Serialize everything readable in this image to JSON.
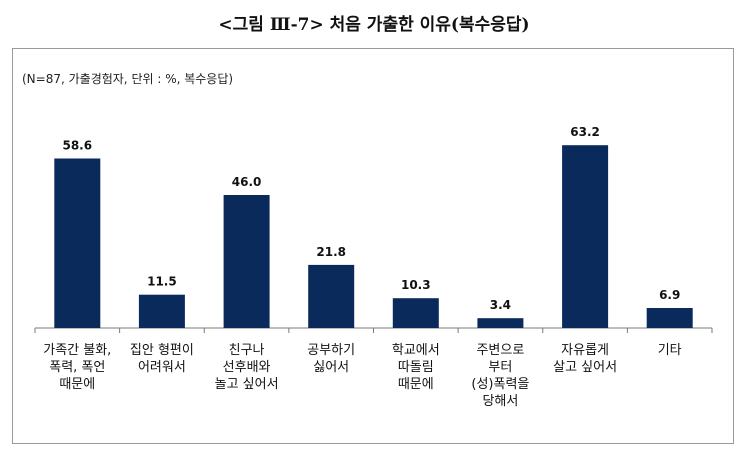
{
  "chart_data": {
    "type": "bar",
    "title": "<그림 Ⅲ-7> 처음 가출한 이유(복수응답)",
    "note": "(N=87, 가출경험자, 단위 : %, 복수응답)",
    "categories": [
      "가족간 불화,\n폭력, 폭언\n때문에",
      "집안 형편이\n어려워서",
      "친구나\n선후배와\n놀고 싶어서",
      "공부하기\n싫어서",
      "학교에서\n따돌림\n때문에",
      "주변으로\n부터\n(성)폭력을\n당해서",
      "자유롭게\n살고 싶어서",
      "기타"
    ],
    "values": [
      58.6,
      11.5,
      46.0,
      21.8,
      10.3,
      3.4,
      63.2,
      6.9
    ],
    "value_labels": [
      "58.6",
      "11.5",
      "46.0",
      "21.8",
      "10.3",
      "3.4",
      "63.2",
      "6.9"
    ],
    "ylim": [
      0,
      65
    ],
    "bar_color": "#0b2a5c",
    "xlabel": "",
    "ylabel": "",
    "legend": "none",
    "grid": false
  }
}
